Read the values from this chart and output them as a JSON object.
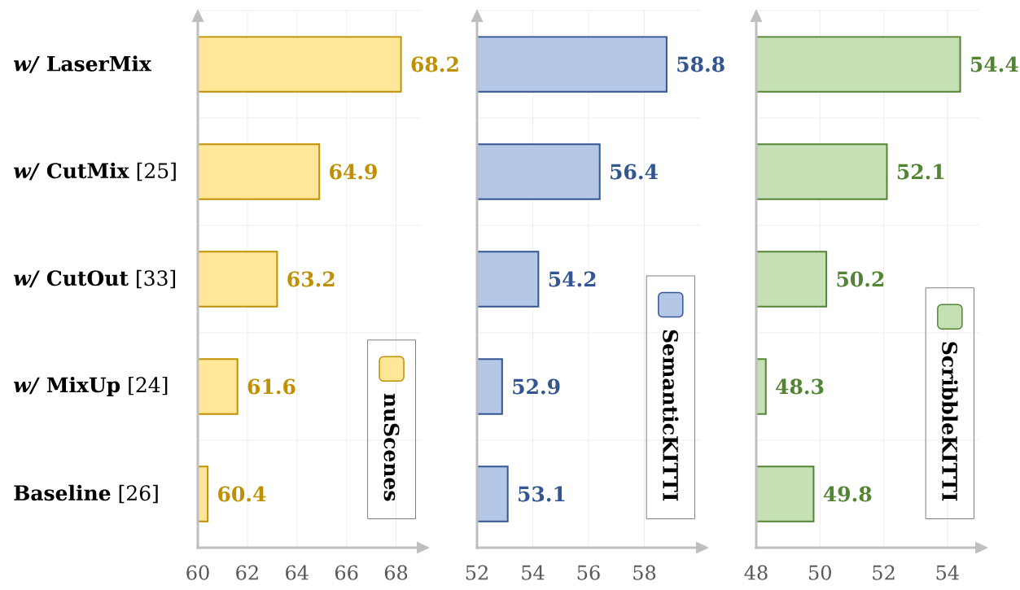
{
  "chart_data": [
    {
      "type": "bar",
      "orientation": "horizontal",
      "categories": [
        "*w/* **LaserMix**",
        "*w/* **CutMix** [25]",
        "*w/* **CutOut** [33]",
        "*w/* **MixUp** [24]",
        "**Baseline** [26]"
      ],
      "series": [
        {
          "name": "nuScenes",
          "color": "#ffe699",
          "values": [
            68.2,
            64.9,
            63.2,
            61.6,
            60.4
          ]
        }
      ],
      "xlim": [
        60,
        69
      ],
      "xticks": [
        60,
        62,
        64,
        66,
        68
      ],
      "grid": true,
      "legend": "bottom right",
      "data_labels": true
    },
    {
      "type": "bar",
      "orientation": "horizontal",
      "categories": [
        null,
        null,
        null,
        null,
        null
      ],
      "series": [
        {
          "name": "SemanticKITTI",
          "color": "#b4c7e7",
          "values": [
            58.8,
            56.4,
            54.2,
            52.9,
            53.1
          ]
        }
      ],
      "xlim": [
        52,
        60
      ],
      "xticks": [
        52,
        54,
        56,
        58
      ],
      "grid": true,
      "legend": "bottom right",
      "data_labels": true
    },
    {
      "type": "bar",
      "orientation": "horizontal",
      "categories": [
        null,
        null,
        null,
        null,
        null
      ],
      "series": [
        {
          "name": "ScribbleKITTI",
          "color": "#c5e0b4",
          "values": [
            54.4,
            52.1,
            50.2,
            48.3,
            49.8
          ]
        }
      ],
      "xlim": [
        48,
        55
      ],
      "xticks": [
        48,
        50,
        52,
        54
      ],
      "grid": true,
      "legend": "bottom right",
      "data_labels": true
    }
  ]
}
